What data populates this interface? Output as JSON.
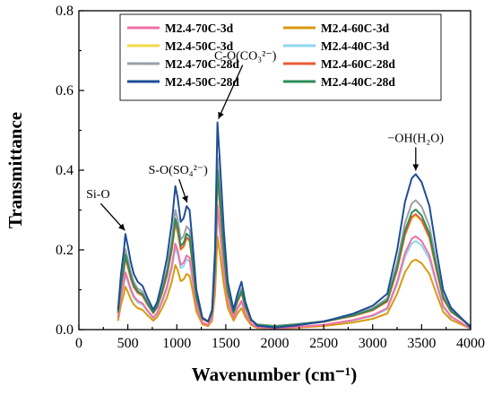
{
  "chart_data": {
    "type": "line",
    "title": "",
    "xlabel": "Wavenumber (cm⁻¹)",
    "ylabel": "Transmittance",
    "xlim": [
      0,
      4000
    ],
    "ylim": [
      0.0,
      0.8
    ],
    "xticks": [
      "0",
      "500",
      "1000",
      "1500",
      "2000",
      "2500",
      "3000",
      "3500",
      "4000"
    ],
    "yticks": [
      "0.0",
      "0.2",
      "0.4",
      "0.6",
      "0.8"
    ],
    "grid": false,
    "legend_position": "top-center",
    "series": [
      {
        "name": "M2.4-70C-3d",
        "color": "#f06fa6",
        "s": 0.6,
        "b": 0.0
      },
      {
        "name": "M2.4-60C-3d",
        "color": "#d99a0e",
        "s": 0.45,
        "b": 0.0
      },
      {
        "name": "M2.4-50C-3d",
        "color": "#f5d84a",
        "s": 0.72,
        "b": 0.005
      },
      {
        "name": "M2.4-40C-3d",
        "color": "#8fd6f0",
        "s": 0.57,
        "b": 0.0
      },
      {
        "name": "M2.4-70C-28d",
        "color": "#9aa0a6",
        "s": 0.82,
        "b": 0.005
      },
      {
        "name": "M2.4-60C-28d",
        "color": "#ea5a3a",
        "s": 0.73,
        "b": 0.005
      },
      {
        "name": "M2.4-50C-28d",
        "color": "#1f4e96",
        "s": 1.0,
        "b": 0.0
      },
      {
        "name": "M2.4-40C-28d",
        "color": "#2e8b57",
        "s": 0.76,
        "b": 0.005
      }
    ],
    "reference_curve": [
      [
        400,
        0.05
      ],
      [
        430,
        0.14
      ],
      [
        460,
        0.2
      ],
      [
        475,
        0.24
      ],
      [
        500,
        0.21
      ],
      [
        530,
        0.17
      ],
      [
        560,
        0.14
      ],
      [
        600,
        0.12
      ],
      [
        650,
        0.11
      ],
      [
        700,
        0.08
      ],
      [
        760,
        0.05
      ],
      [
        800,
        0.07
      ],
      [
        850,
        0.12
      ],
      [
        900,
        0.18
      ],
      [
        950,
        0.27
      ],
      [
        985,
        0.36
      ],
      [
        1010,
        0.33
      ],
      [
        1040,
        0.27
      ],
      [
        1070,
        0.28
      ],
      [
        1100,
        0.31
      ],
      [
        1130,
        0.3
      ],
      [
        1160,
        0.22
      ],
      [
        1200,
        0.1
      ],
      [
        1260,
        0.03
      ],
      [
        1320,
        0.02
      ],
      [
        1360,
        0.05
      ],
      [
        1390,
        0.2
      ],
      [
        1415,
        0.52
      ],
      [
        1445,
        0.4
      ],
      [
        1480,
        0.25
      ],
      [
        1520,
        0.12
      ],
      [
        1580,
        0.05
      ],
      [
        1620,
        0.09
      ],
      [
        1660,
        0.12
      ],
      [
        1700,
        0.07
      ],
      [
        1760,
        0.025
      ],
      [
        1820,
        0.01
      ],
      [
        2000,
        0.005
      ],
      [
        2200,
        0.01
      ],
      [
        2500,
        0.02
      ],
      [
        2800,
        0.04
      ],
      [
        3000,
        0.06
      ],
      [
        3150,
        0.09
      ],
      [
        3250,
        0.2
      ],
      [
        3330,
        0.32
      ],
      [
        3400,
        0.38
      ],
      [
        3440,
        0.39
      ],
      [
        3500,
        0.37
      ],
      [
        3580,
        0.31
      ],
      [
        3650,
        0.2
      ],
      [
        3720,
        0.1
      ],
      [
        3800,
        0.055
      ],
      [
        3900,
        0.03
      ],
      [
        4000,
        0.005
      ]
    ],
    "annotations": [
      {
        "label": "Si-O",
        "x": 475,
        "y": 0.24
      },
      {
        "label": "S-O(SO₄²⁻)",
        "x": 1100,
        "y": 0.31
      },
      {
        "label": "C-O(CO₃²⁻)",
        "x": 1415,
        "y": 0.52
      },
      {
        "label": "−OH(H₂O)",
        "x": 3440,
        "y": 0.39
      }
    ]
  }
}
